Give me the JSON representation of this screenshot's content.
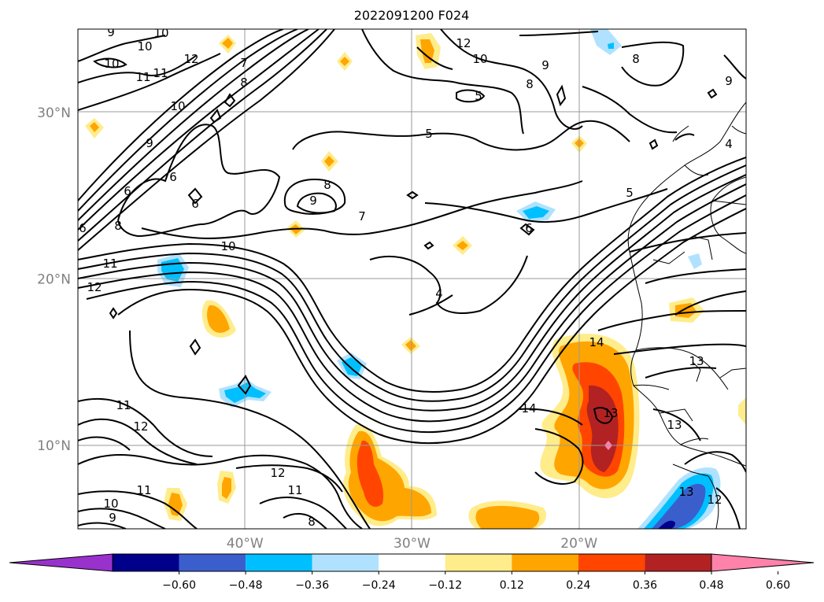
{
  "title": "2022091200 F024",
  "map": {
    "lat_labels": [
      "30°N",
      "20°N",
      "10°N"
    ],
    "lon_labels": [
      "40°W",
      "30°W",
      "20°W"
    ],
    "lat_values": [
      30,
      20,
      10
    ],
    "lon_values": [
      -40,
      -30,
      -20
    ],
    "extent": {
      "lon_min": -50,
      "lon_max": -10,
      "lat_min": 5,
      "lat_max": 35
    },
    "grid": true
  },
  "colorbar": {
    "ticks": [
      "−0.60",
      "−0.48",
      "−0.36",
      "−0.24",
      "−0.12",
      "0.12",
      "0.24",
      "0.36",
      "0.48",
      "0.60"
    ],
    "colors": [
      "#9932cc",
      "#00008b",
      "#3a5fcd",
      "#00bfff",
      "#b0e2ff",
      "#ffffff",
      "#ffec8b",
      "#ffa500",
      "#ff4500",
      "#b22222",
      "#ff82ab"
    ],
    "extend": "both"
  },
  "contour_labels": [
    "9",
    "10",
    "10",
    "12",
    "10",
    "11",
    "11",
    "8",
    "10",
    "9",
    "7",
    "6",
    "6",
    "6",
    "6",
    "8",
    "8",
    "9",
    "7",
    "5",
    "5",
    "6",
    "12",
    "10",
    "9",
    "8",
    "5",
    "4",
    "4",
    "12",
    "11",
    "10",
    "11",
    "12",
    "8",
    "9",
    "14",
    "14",
    "13",
    "13",
    "13",
    "12",
    "13",
    "11",
    "12",
    "11",
    "10",
    "9",
    "8"
  ]
}
